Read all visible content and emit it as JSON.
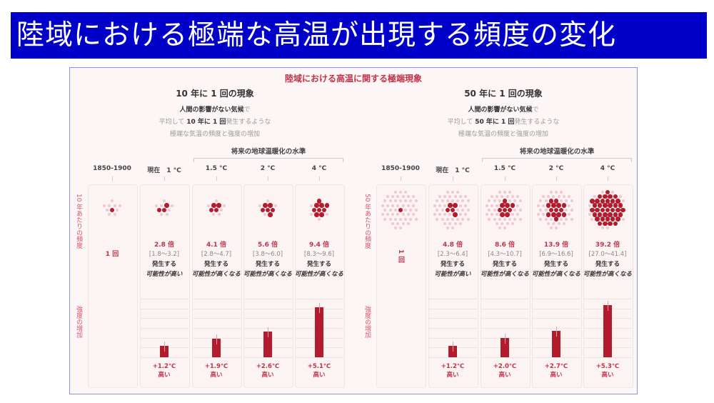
{
  "slide_title": "陸域における極端な高温が出現する頻度の変化",
  "figure_title": "陸域における高温に関する極端現象",
  "colors": {
    "title_bar": "#0000c8",
    "accent": "#c0334a",
    "bar": "#b31b2e",
    "dot_active": "#b31b2e",
    "dot_background": "#f4c6cf"
  },
  "panels": [
    {
      "heading": "10 年に 1 回の現象",
      "sub_line1_bold": "人間の影響がない気候",
      "sub_line1_rest": "で",
      "sub_line2_pre": "平均して",
      "sub_line2_bold": "10 年に 1 回",
      "sub_line2_post": "発生するような",
      "sub_line3": "極端な気温の頻度と強度の増加",
      "future_label": "将来の地球温暖化の水準",
      "freq_axis_label": "10 年あたりの頻度",
      "intensity_axis_label": "強度の増加",
      "background_dots": 10,
      "columns": [
        {
          "label": "1850-1900",
          "count_label": "1 回",
          "dots": 1
        },
        {
          "label": "現在　1 °C",
          "multiplier": "2.8 倍",
          "range": "[1.8～3.2]",
          "likelihood1": "発生する",
          "likelihood2": "可能性が高い",
          "dots": 2.8,
          "intensity": 1.2,
          "intensity_label": "+1.2℃",
          "high": "高い"
        },
        {
          "label": "1.5 °C",
          "multiplier": "4.1 倍",
          "range": "[2.8～4.7]",
          "likelihood1": "発生する",
          "likelihood2": "可能性が高くなる",
          "dots": 4.1,
          "intensity": 1.9,
          "intensity_label": "+1.9℃",
          "high": "高い"
        },
        {
          "label": "2 °C",
          "multiplier": "5.6 倍",
          "range": "[3.8～6.0]",
          "likelihood1": "発生する",
          "likelihood2": "可能性が高くなる",
          "dots": 5.6,
          "intensity": 2.6,
          "intensity_label": "+2.6℃",
          "high": "高い"
        },
        {
          "label": "4 °C",
          "multiplier": "9.4 倍",
          "range": "[8.3～9.6]",
          "likelihood1": "発生する",
          "likelihood2": "可能性が高くなる",
          "dots": 9.4,
          "intensity": 5.1,
          "intensity_label": "+5.1℃",
          "high": "高い"
        }
      ]
    },
    {
      "heading": "50 年に 1 回の現象",
      "sub_line1_bold": "人間の影響がない気候",
      "sub_line1_rest": "で",
      "sub_line2_pre": "平均して",
      "sub_line2_bold": "50 年に 1 回",
      "sub_line2_post": "発生するような",
      "sub_line3": "極端な気温の頻度と強度の増加",
      "future_label": "将来の地球温暖化の水準",
      "freq_axis_label": "50 年あたりの頻度",
      "intensity_axis_label": "強度の増加",
      "background_dots": 50,
      "columns": [
        {
          "label": "1850-1900",
          "count_label": "1 回",
          "dots": 1
        },
        {
          "label": "現在　1 °C",
          "multiplier": "4.8 倍",
          "range": "[2.3～6.4]",
          "likelihood1": "発生する",
          "likelihood2": "可能性が高い",
          "dots": 4.8,
          "intensity": 1.2,
          "intensity_label": "+1.2℃",
          "high": "高い"
        },
        {
          "label": "1.5 °C",
          "multiplier": "8.6 倍",
          "range": "[4.3～10.7]",
          "likelihood1": "発生する",
          "likelihood2": "可能性が高くなる",
          "dots": 8.6,
          "intensity": 2.0,
          "intensity_label": "+2.0℃",
          "high": "高い"
        },
        {
          "label": "2 °C",
          "multiplier": "13.9 倍",
          "range": "[6.9～16.6]",
          "likelihood1": "発生する",
          "likelihood2": "可能性が高くなる",
          "dots": 13.9,
          "intensity": 2.7,
          "intensity_label": "+2.7℃",
          "high": "高い"
        },
        {
          "label": "4 °C",
          "multiplier": "39.2 倍",
          "range": "[27.0～41.4]",
          "likelihood1": "発生する",
          "likelihood2": "可能性が高くなる",
          "dots": 39.2,
          "intensity": 5.3,
          "intensity_label": "+5.3℃",
          "high": "高い"
        }
      ]
    }
  ],
  "y_ticks": [
    "+6 ℃",
    "+5 ℃",
    "+4 ℃",
    "+3 ℃",
    "+2 ℃",
    "+1 ℃",
    "0 ℃"
  ],
  "chart_data": [
    {
      "type": "bar",
      "title": "10 年に 1 回の現象",
      "categories": [
        "現在 1 °C",
        "1.5 °C",
        "2 °C",
        "4 °C"
      ],
      "values": [
        1.2,
        1.9,
        2.6,
        5.1
      ],
      "ylabel": "強度の増加",
      "ylim": [
        0,
        6
      ],
      "frequency_multipliers": [
        2.8,
        4.1,
        5.6,
        9.4
      ]
    },
    {
      "type": "bar",
      "title": "50 年に 1 回の現象",
      "categories": [
        "現在 1 °C",
        "1.5 °C",
        "2 °C",
        "4 °C"
      ],
      "values": [
        1.2,
        2.0,
        2.7,
        5.3
      ],
      "ylabel": "強度の増加",
      "ylim": [
        0,
        6
      ],
      "frequency_multipliers": [
        4.8,
        8.6,
        13.9,
        39.2
      ]
    }
  ]
}
